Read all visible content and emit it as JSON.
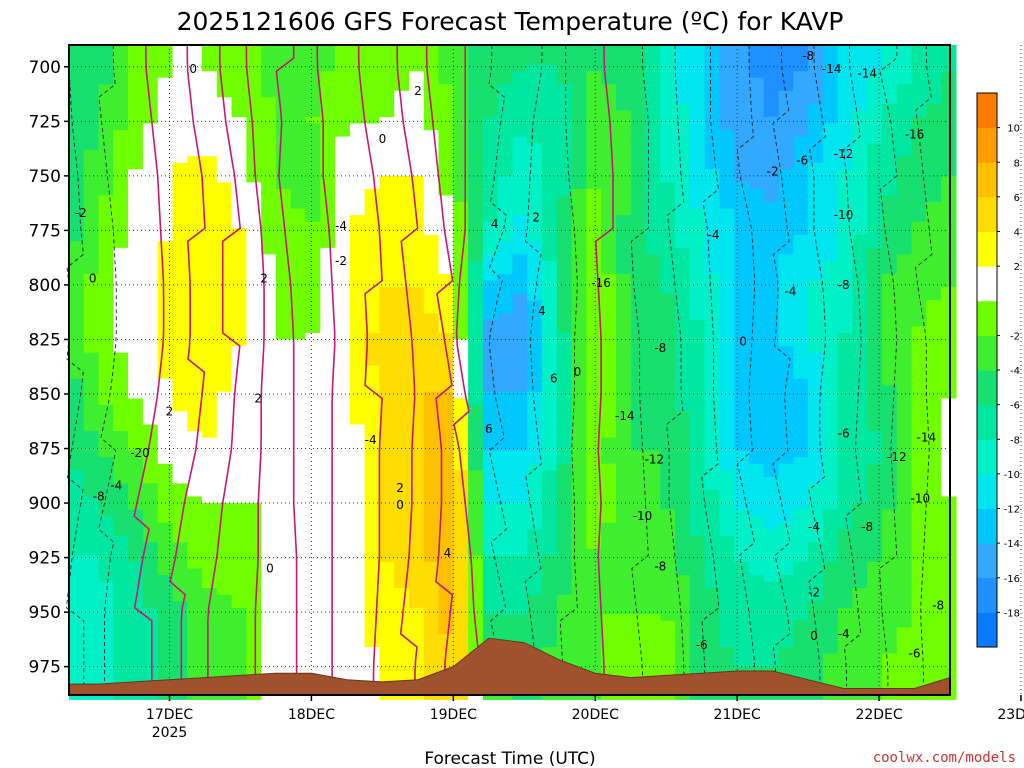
{
  "chart_data": {
    "type": "heatmap",
    "title": "2025121606 GFS Forecast Temperature (ºC) for KAVP",
    "xlabel": "Forecast Time (UTC)",
    "ylabel": "Pressure (hPa)",
    "credit": "coolwx.com/models",
    "credit_color": "#cc3333",
    "y_ticks": [
      700,
      725,
      750,
      775,
      800,
      825,
      850,
      875,
      900,
      925,
      950,
      975
    ],
    "ylim": [
      988,
      690
    ],
    "x_ticks": [
      "17DEC",
      "18DEC",
      "19DEC",
      "20DEC",
      "21DEC",
      "22DEC",
      "23DEC"
    ],
    "x_tick_sub": "2025",
    "xlim_hours": [
      -17,
      132
    ],
    "x_tick_hours": [
      0,
      24,
      48,
      72,
      96,
      120,
      144
    ],
    "colorbar": {
      "levels": [
        -20,
        -18,
        -16,
        -14,
        -12,
        -10,
        -8,
        -6,
        -4,
        -2,
        0,
        2,
        4,
        6,
        8,
        10,
        12
      ],
      "labels": [
        "-18",
        "-16",
        "-14",
        "-12",
        "-10",
        "-8",
        "-6",
        "-4",
        "-2",
        "2",
        "4",
        "6",
        "8",
        "10"
      ],
      "label_values": [
        -18,
        -16,
        -14,
        -12,
        -10,
        -8,
        -6,
        -4,
        -2,
        2,
        4,
        6,
        8,
        10
      ],
      "colors": [
        "#0a7bff",
        "#1e90ff",
        "#32a8ff",
        "#00c8ff",
        "#00e6ee",
        "#00f0c8",
        "#00e8a0",
        "#18e070",
        "#40ee30",
        "#70ff00",
        "#ffffff",
        "#ffff00",
        "#ffdd00",
        "#ffc000",
        "#ff9c00",
        "#ff7a00"
      ]
    },
    "surface_color": "#a0522d",
    "columns_hours": [
      -17,
      -12,
      -6,
      0,
      6,
      12,
      18,
      24,
      30,
      36,
      42,
      48,
      54,
      60,
      66,
      72,
      78,
      84,
      90,
      96,
      102,
      108,
      114,
      120,
      126,
      132
    ],
    "temperature_profiles": [
      [
        -6,
        -6,
        -5,
        -5,
        -4,
        -4,
        -5,
        -6,
        -7,
        -8,
        -9,
        -9
      ],
      [
        -5,
        -4,
        -3,
        -2,
        -1,
        -1,
        -2,
        -4,
        -6,
        -8,
        -9,
        -9
      ],
      [
        -2,
        -1,
        0,
        1,
        1,
        1,
        0,
        -2,
        -4,
        -6,
        -7,
        -7
      ],
      [
        0,
        1,
        2,
        2,
        3,
        3,
        2,
        1,
        -1,
        -3,
        -5,
        -5
      ],
      [
        0,
        1,
        3,
        4,
        4,
        4,
        3,
        2,
        0,
        -1,
        -3,
        -3
      ],
      [
        -1,
        0,
        1,
        2,
        2,
        2,
        1,
        1,
        0,
        -1,
        -2,
        -2
      ],
      [
        -3,
        -2,
        -2,
        -1,
        0,
        0,
        0,
        0,
        0,
        1,
        1,
        1
      ],
      [
        -3,
        -2,
        -3,
        -2,
        -1,
        0,
        0,
        0,
        0,
        0,
        0,
        0
      ],
      [
        -1,
        0,
        1,
        2,
        2,
        2,
        1,
        1,
        1,
        1,
        1,
        1
      ],
      [
        -1,
        0,
        2,
        3,
        4,
        5,
        5,
        4,
        4,
        4,
        3,
        2
      ],
      [
        0,
        1,
        2,
        3,
        4,
        5,
        6,
        6,
        6,
        5,
        4,
        3
      ],
      [
        -3,
        -2,
        -1,
        0,
        2,
        4,
        6,
        8,
        8,
        8,
        7,
        6
      ],
      [
        -5,
        -6,
        -7,
        -8,
        -12,
        -15,
        -14,
        -12,
        -10,
        -8,
        -6,
        -3
      ],
      [
        -6,
        -8,
        -9,
        -11,
        -14,
        -15,
        -14,
        -12,
        -10,
        -8,
        -6,
        -5
      ],
      [
        -6,
        -7,
        -7,
        -6,
        -6,
        -7,
        -7,
        -7,
        -6,
        -5,
        -4,
        -3
      ],
      [
        -4,
        -3,
        -2,
        -1,
        0,
        0,
        0,
        -1,
        -1,
        -2,
        -2,
        -2
      ],
      [
        -5,
        -4,
        -4,
        -5,
        -5,
        -4,
        -4,
        -4,
        -3,
        -3,
        -2,
        -1
      ],
      [
        -9,
        -8,
        -8,
        -7,
        -6,
        -5,
        -5,
        -4,
        -4,
        -3,
        -2,
        -1
      ],
      [
        -12,
        -12,
        -11,
        -10,
        -9,
        -8,
        -8,
        -7,
        -7,
        -6,
        -5,
        -5
      ],
      [
        -15,
        -15,
        -14,
        -12,
        -12,
        -12,
        -12,
        -12,
        -10,
        -8,
        -7,
        -6
      ],
      [
        -17,
        -16,
        -15,
        -13,
        -12,
        -13,
        -14,
        -13,
        -11,
        -9,
        -7,
        -6
      ],
      [
        -16,
        -14,
        -12,
        -12,
        -10,
        -10,
        -12,
        -12,
        -10,
        -8,
        -6,
        -5
      ],
      [
        -12,
        -11,
        -10,
        -10,
        -9,
        -8,
        -8,
        -8,
        -7,
        -5,
        -4,
        -3
      ],
      [
        -10,
        -8,
        -7,
        -6,
        -4,
        -4,
        -5,
        -6,
        -5,
        -4,
        -3,
        -2
      ],
      [
        -8,
        -6,
        -5,
        -4,
        -3,
        -2,
        -2,
        -2,
        -2,
        -2,
        -2,
        -1
      ],
      [
        -6,
        -5,
        -4,
        -3,
        -2,
        0,
        0,
        1,
        0,
        -1,
        -2,
        -2
      ]
    ],
    "surface_pressure": [
      983,
      983,
      982,
      981,
      980,
      979,
      978,
      978,
      981,
      982,
      981,
      975,
      962,
      964,
      972,
      978,
      980,
      979,
      978,
      977,
      977,
      981,
      985,
      985,
      985,
      980
    ],
    "contour_labels": [
      {
        "t": "0",
        "h": 4,
        "p": 701
      },
      {
        "t": "2",
        "h": 42,
        "p": 711
      },
      {
        "t": "0",
        "h": 36,
        "p": 733
      },
      {
        "t": "-2",
        "h": -15,
        "p": 767
      },
      {
        "t": "-4",
        "h": 29,
        "p": 773
      },
      {
        "t": "-2",
        "h": 29,
        "p": 789
      },
      {
        "t": "0",
        "h": -13,
        "p": 797
      },
      {
        "t": "2",
        "h": 16,
        "p": 797
      },
      {
        "t": "4",
        "h": 55,
        "p": 772
      },
      {
        "t": "2",
        "h": 62,
        "p": 769
      },
      {
        "t": "4",
        "h": 63,
        "p": 812
      },
      {
        "t": "6",
        "h": 65,
        "p": 843
      },
      {
        "t": "0",
        "h": 69,
        "p": 840
      },
      {
        "t": "2",
        "h": 15,
        "p": 852
      },
      {
        "t": "2",
        "h": 0,
        "p": 858
      },
      {
        "t": "-20",
        "h": -5,
        "p": 877
      },
      {
        "t": "-4",
        "h": -9,
        "p": 892
      },
      {
        "t": "-8",
        "h": -12,
        "p": 897
      },
      {
        "t": "-4",
        "h": 34,
        "p": 871
      },
      {
        "t": "6",
        "h": 54,
        "p": 866
      },
      {
        "t": "2",
        "h": 39,
        "p": 893
      },
      {
        "t": "0",
        "h": 39,
        "p": 901
      },
      {
        "t": "4",
        "h": 47,
        "p": 923
      },
      {
        "t": "0",
        "h": 17,
        "p": 930
      },
      {
        "t": "-16",
        "h": 73,
        "p": 799
      },
      {
        "t": "-8",
        "h": 83,
        "p": 829
      },
      {
        "t": "-14",
        "h": 77,
        "p": 860
      },
      {
        "t": "-12",
        "h": 82,
        "p": 880
      },
      {
        "t": "-10",
        "h": 80,
        "p": 906
      },
      {
        "t": "-8",
        "h": 83,
        "p": 929
      },
      {
        "t": "-6",
        "h": 90,
        "p": 965
      },
      {
        "t": "-4",
        "h": 92,
        "p": 777
      },
      {
        "t": "0",
        "h": 97,
        "p": 826
      },
      {
        "t": "-2",
        "h": 102,
        "p": 748
      },
      {
        "t": "-6",
        "h": 107,
        "p": 743
      },
      {
        "t": "-4",
        "h": 105,
        "p": 803
      },
      {
        "t": "-8",
        "h": 108,
        "p": 695
      },
      {
        "t": "-14",
        "h": 112,
        "p": 701
      },
      {
        "t": "-14",
        "h": 118,
        "p": 703
      },
      {
        "t": "-12",
        "h": 114,
        "p": 740
      },
      {
        "t": "-10",
        "h": 114,
        "p": 768
      },
      {
        "t": "-8",
        "h": 114,
        "p": 800
      },
      {
        "t": "-16",
        "h": 126,
        "p": 731
      },
      {
        "t": "-6",
        "h": 114,
        "p": 868
      },
      {
        "t": "-4",
        "h": 109,
        "p": 911
      },
      {
        "t": "-8",
        "h": 118,
        "p": 911
      },
      {
        "t": "-2",
        "h": 109,
        "p": 941
      },
      {
        "t": "0",
        "h": 109,
        "p": 961
      },
      {
        "t": "-4",
        "h": 114,
        "p": 960
      },
      {
        "t": "-12",
        "h": 123,
        "p": 879
      },
      {
        "t": "-14",
        "h": 128,
        "p": 870
      },
      {
        "t": "-12",
        "h": 133,
        "p": 874
      },
      {
        "t": "-10",
        "h": 127,
        "p": 898
      },
      {
        "t": "-10",
        "h": 137,
        "p": 902
      },
      {
        "t": "-8",
        "h": 130,
        "p": 947
      },
      {
        "t": "-6",
        "h": 126,
        "p": 969
      },
      {
        "t": "-6",
        "h": 145,
        "p": 966
      },
      {
        "t": "-4",
        "h": 138,
        "p": 753
      },
      {
        "t": "-12",
        "h": 134,
        "p": 778
      },
      {
        "t": "-10",
        "h": 136,
        "p": 798
      },
      {
        "t": "-10",
        "h": 147,
        "p": 762
      },
      {
        "t": "-8",
        "h": 151,
        "p": 755
      },
      {
        "t": "-6",
        "h": 154,
        "p": 770
      },
      {
        "t": "-4",
        "h": 153,
        "p": 798
      },
      {
        "t": "-2",
        "h": 156,
        "p": 810
      },
      {
        "t": "0",
        "h": 154,
        "p": 860
      },
      {
        "t": "-8",
        "h": 140,
        "p": 858
      },
      {
        "t": "-6",
        "h": 143,
        "p": 866
      },
      {
        "t": "-4",
        "h": 146,
        "p": 912
      },
      {
        "t": "-2",
        "h": 150,
        "p": 922
      },
      {
        "t": "-2",
        "h": 153,
        "p": 962
      }
    ]
  }
}
